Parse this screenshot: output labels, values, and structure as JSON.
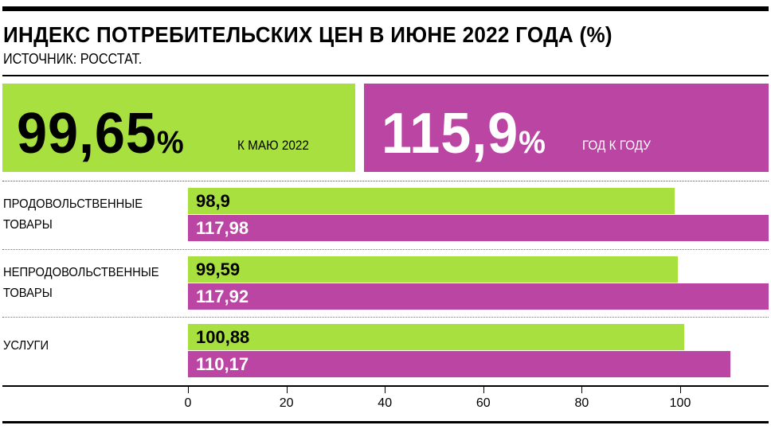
{
  "header": {
    "title": "ИНДЕКС ПОТРЕБИТЕЛЬСКИХ ЦЕН В ИЮНЕ 2022 ГОДА (%)",
    "source": "ИСТОЧНИК: РОССТАТ."
  },
  "kpis": [
    {
      "value": "99,65",
      "unit": "%",
      "caption": "К МАЮ 2022"
    },
    {
      "value": "115,9",
      "unit": "%",
      "caption": "ГОД К ГОДУ"
    }
  ],
  "colors": {
    "green": "#a8e03f",
    "magenta": "#bb45a3"
  },
  "chart_data": {
    "type": "bar",
    "orientation": "horizontal",
    "categories": [
      [
        "ПРОДОВОЛЬСТВЕННЫЕ",
        "ТОВАРЫ"
      ],
      [
        "НЕПРОДОВОЛЬСТВЕННЫЕ",
        "ТОВАРЫ"
      ],
      [
        "УСЛУГИ"
      ]
    ],
    "series": [
      {
        "name": "к маю 2022",
        "values": [
          98.9,
          99.59,
          100.88
        ],
        "labels": [
          "98,9",
          "99,59",
          "100,88"
        ]
      },
      {
        "name": "год к году",
        "values": [
          117.98,
          117.92,
          110.17
        ],
        "labels": [
          "117,98",
          "117,92",
          "110,17"
        ]
      }
    ],
    "xticks": [
      "0",
      "20",
      "40",
      "60",
      "80",
      "100"
    ],
    "xlim": [
      0,
      120
    ]
  }
}
